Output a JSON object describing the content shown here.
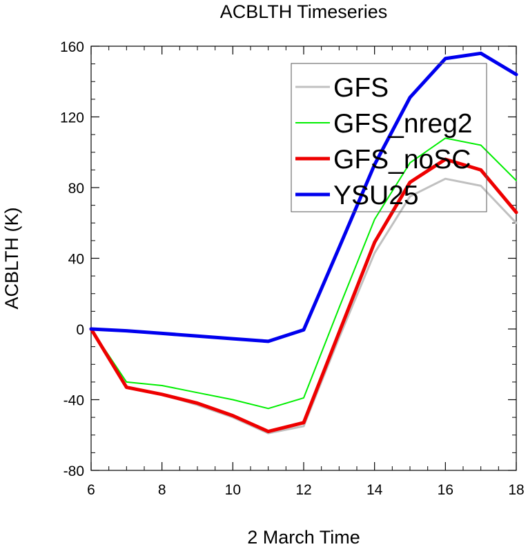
{
  "chart_data": {
    "type": "line",
    "title": "ACBLTH Timeseries",
    "xlabel": "2 March Time",
    "ylabel": "ACBLTH (K)",
    "xlim": [
      6,
      18
    ],
    "ylim": [
      -80,
      160
    ],
    "x_ticks": [
      6,
      8,
      10,
      12,
      14,
      16,
      18
    ],
    "y_ticks": [
      -80,
      -40,
      0,
      40,
      80,
      120,
      160
    ],
    "grid": false,
    "legend_position": "top-right",
    "x": [
      6,
      7,
      8,
      9,
      10,
      11,
      12,
      13,
      14,
      15,
      16,
      17,
      18
    ],
    "series": [
      {
        "name": "GFS",
        "color": "#c0c0c0",
        "width": 3,
        "values": [
          0,
          -33,
          -37,
          -43,
          -50,
          -59,
          -55,
          -5,
          43,
          75,
          85,
          81,
          60
        ]
      },
      {
        "name": "GFS_nreg2",
        "color": "#00ee00",
        "width": 2,
        "values": [
          0,
          -30,
          -32,
          -36,
          -40,
          -45,
          -39,
          12,
          62,
          94,
          108,
          104,
          84
        ]
      },
      {
        "name": "GFS_noSC",
        "color": "#ee0000",
        "width": 5,
        "values": [
          0,
          -33,
          -37,
          -42,
          -49,
          -58,
          -53,
          -2,
          49,
          83,
          96,
          90,
          66
        ]
      },
      {
        "name": "YSU25",
        "color": "#0000ee",
        "width": 5,
        "values": [
          0,
          -1,
          -2.5,
          -4,
          -5.5,
          -7,
          -0.5,
          46,
          93,
          131,
          153,
          156,
          144
        ]
      }
    ]
  }
}
